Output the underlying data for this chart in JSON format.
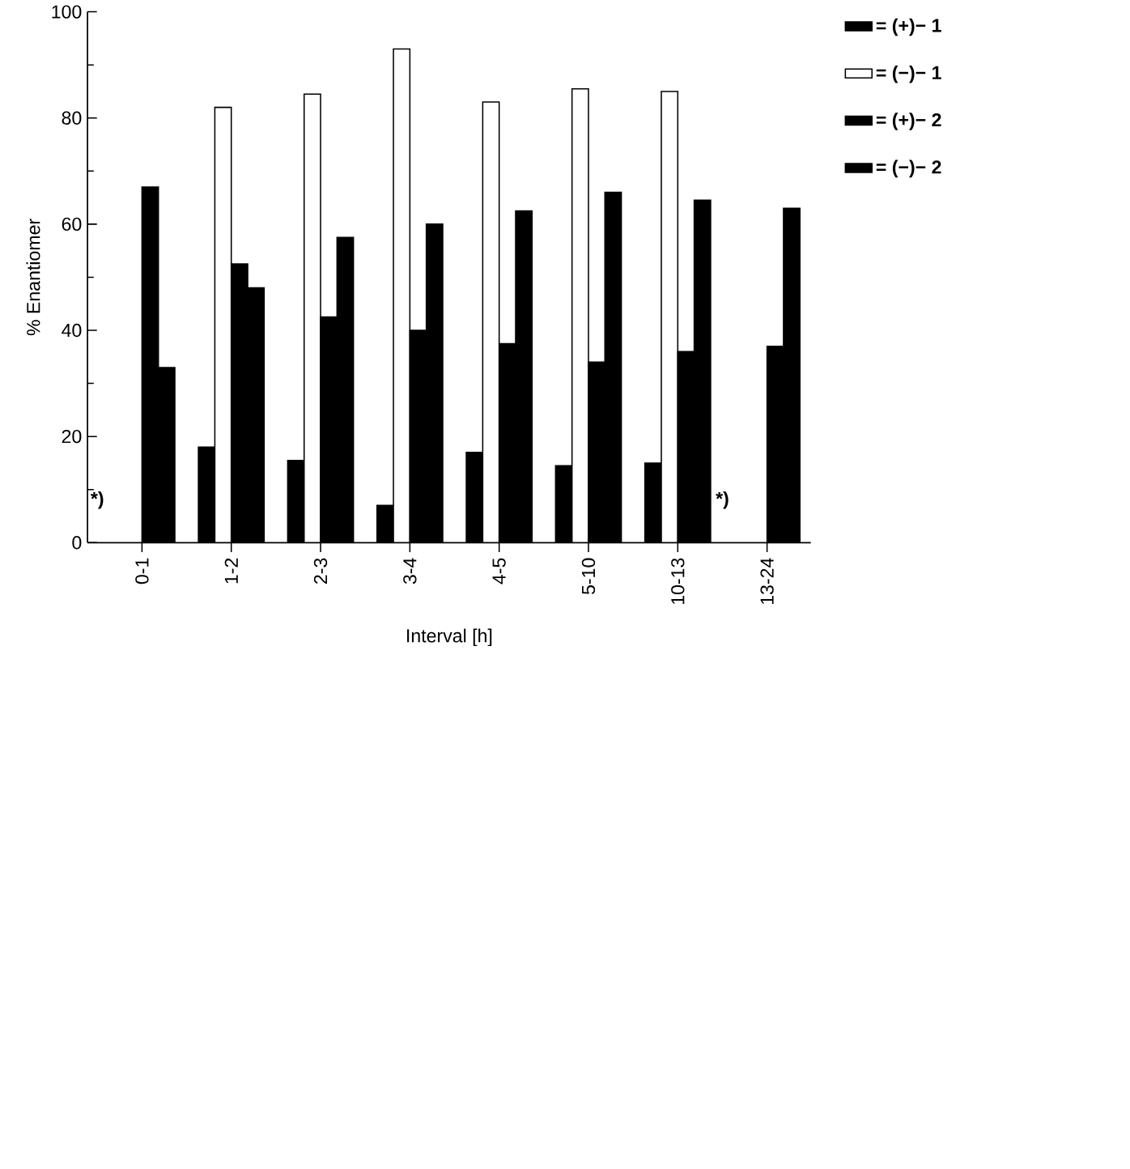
{
  "chart_data": {
    "type": "bar",
    "xlabel": "Interval [h]",
    "ylabel": "% Enantiomer",
    "categories": [
      "0-1",
      "1-2",
      "2-3",
      "3-4",
      "4-5",
      "5-10",
      "10-13",
      "13-24"
    ],
    "series": [
      {
        "name": "= (+)− 1",
        "color": "#000000",
        "values": [
          null,
          18,
          15.5,
          7,
          17,
          14.5,
          15,
          null
        ]
      },
      {
        "name": "= (−)− 1",
        "color": "#ffffff",
        "values": [
          null,
          82,
          84.5,
          93,
          83,
          85.5,
          85,
          null
        ]
      },
      {
        "name": "= (+)− 2",
        "color": "#000000",
        "values": [
          67,
          52.5,
          42.5,
          40,
          37.5,
          34,
          36,
          37
        ]
      },
      {
        "name": "= (−)− 2",
        "color": "#000000",
        "values": [
          33,
          48,
          57.5,
          60,
          62.5,
          66,
          64.5,
          63
        ]
      }
    ],
    "ylim": [
      0,
      100
    ],
    "yticks": [
      0,
      20,
      40,
      60,
      80,
      100
    ],
    "annotations": [
      {
        "text": "*)",
        "x": "0-1",
        "y": 8
      },
      {
        "text": "*)",
        "x": "13-24",
        "y": 8
      }
    ],
    "grid": false,
    "legend": "top right"
  }
}
